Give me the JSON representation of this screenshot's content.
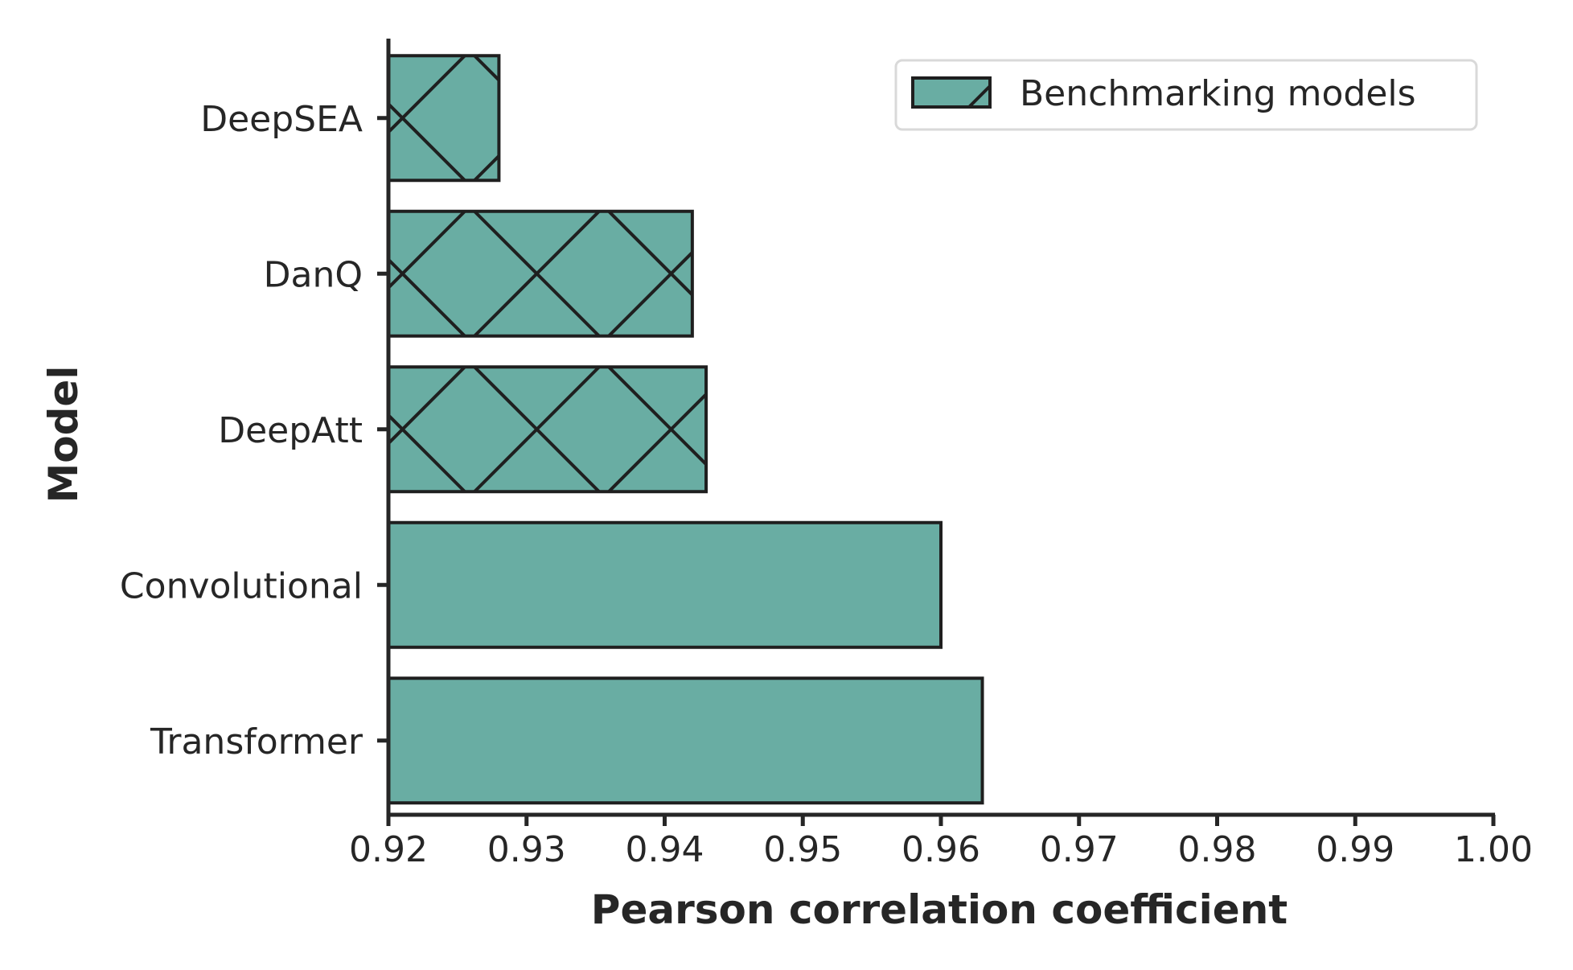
{
  "chart_data": {
    "type": "bar",
    "orientation": "horizontal",
    "categories": [
      "DeepSEA",
      "DanQ",
      "DeepAtt",
      "Convolutional",
      "Transformer"
    ],
    "values": [
      0.928,
      0.942,
      0.943,
      0.96,
      0.963
    ],
    "hatched": [
      true,
      true,
      true,
      false,
      false
    ],
    "xlabel": "Pearson correlation coefficient",
    "ylabel": "Model",
    "xlim": [
      0.92,
      1.0
    ],
    "xticks": [
      "0.92",
      "0.93",
      "0.94",
      "0.95",
      "0.96",
      "0.97",
      "0.98",
      "0.99",
      "1.00"
    ],
    "legend": {
      "entries": [
        "Benchmarking models"
      ],
      "placement": "top-right"
    },
    "grid": false,
    "colors": {
      "bar_fill": "#69ada3",
      "edge": "#1f1f1f"
    }
  }
}
